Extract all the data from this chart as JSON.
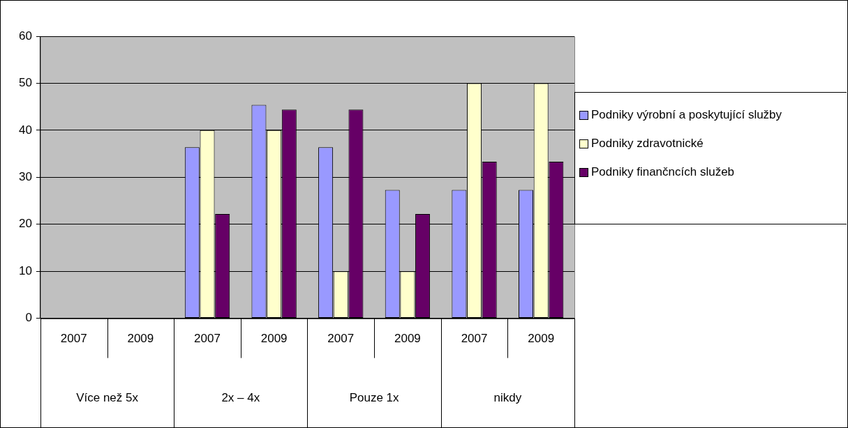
{
  "chart_data": {
    "type": "bar",
    "categories": [
      "2007",
      "2009",
      "2007",
      "2009",
      "2007",
      "2009",
      "2007",
      "2009"
    ],
    "annotations": [
      "Více než 5x",
      "2x – 4x",
      "Pouze 1x",
      "nikdy"
    ],
    "series": [
      {
        "name": "Podniky výrobní a poskytující služby",
        "color": "#9999ff",
        "values": [
          0,
          0,
          36.4,
          45.4,
          36.4,
          27.3,
          27.3,
          27.3
        ]
      },
      {
        "name": "Podniky zdravotnické",
        "color": "#ffffcc",
        "values": [
          0,
          0,
          40,
          40,
          10,
          10,
          50,
          50
        ]
      },
      {
        "name": "Podniky finančncích služeb",
        "color": "#660066",
        "values": [
          0,
          0,
          22.2,
          44.4,
          44.4,
          22.2,
          33.3,
          33.3
        ]
      }
    ],
    "ylim": [
      0,
      60
    ],
    "yticks": [
      0,
      10,
      20,
      30,
      40,
      50,
      60
    ],
    "grid": "y",
    "legend": "right"
  }
}
